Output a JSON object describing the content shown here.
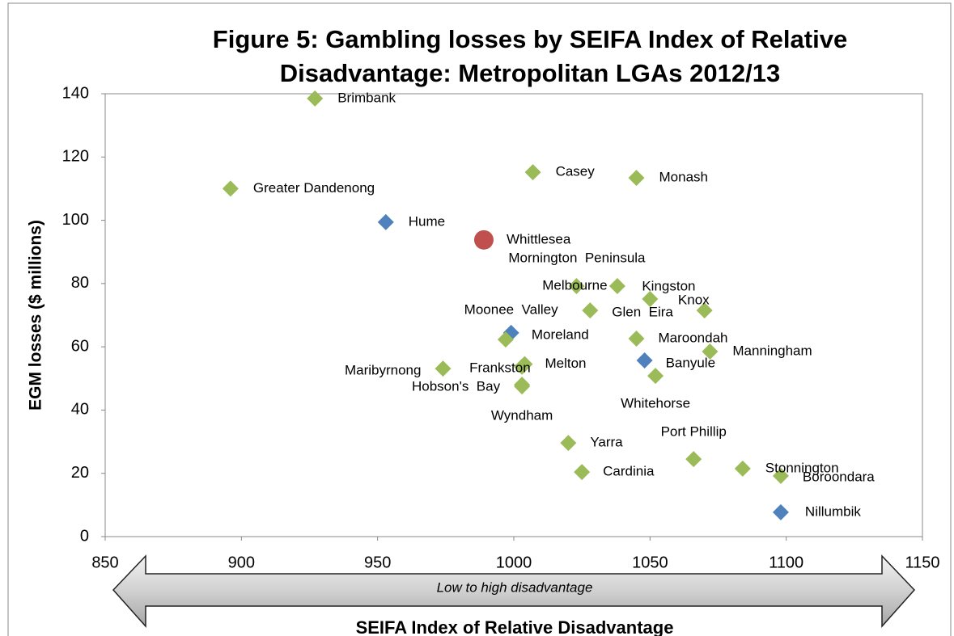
{
  "chart_data": {
    "type": "scatter",
    "title": "Figure 5: Gambling losses by SEIFA Index of Relative Disadvantage: Metropolitan LGAs 2012/13",
    "x_label": "SEIFA Index of Relative Disadvantage",
    "y_label": "EGM losses ($ millions)",
    "annotation": "Low to high disadvantage",
    "point_labels": [
      "Brimbank",
      "Greater Dandenong",
      "Hume",
      "Whittlesea",
      "Casey",
      "Monash",
      "Melbourne",
      "Mornington  Peninsula",
      "Kingston",
      "Knox",
      "Glen  Eira",
      "Moonee  Valley",
      "Moreland",
      "Maroondah",
      "Manningham",
      "Banyule",
      "Whitehorse",
      "Maribyrnong",
      "Frankston",
      "Melton",
      "Hobson's  Bay",
      "Wyndham",
      "Yarra",
      "Cardinia",
      "Port Phillip",
      "Stonnington",
      "Boroondara",
      "Nillumbik"
    ],
    "x": [
      927,
      896,
      953,
      989,
      1007,
      1045,
      1023,
      1038,
      1050,
      1070,
      1028,
      999,
      997,
      1045,
      1072,
      1048,
      1052,
      974,
      1003,
      1004,
      1003,
      1003,
      1020,
      1025,
      1066,
      1084,
      1098,
      1098
    ],
    "values": [
      138.5,
      110,
      99.4,
      93.8,
      115.2,
      113.4,
      79.2,
      79.2,
      75.1,
      71.5,
      71.5,
      64.4,
      62.3,
      62.6,
      58.5,
      55.7,
      50.8,
      53.1,
      53.7,
      54.5,
      48,
      47.5,
      29.6,
      20.4,
      24.5,
      21.5,
      19.2,
      7.7
    ],
    "colors": [
      "#9bbb59",
      "#9bbb59",
      "#4f81bd",
      "#c0504d",
      "#9bbb59",
      "#9bbb59",
      "#9bbb59",
      "#9bbb59",
      "#9bbb59",
      "#9bbb59",
      "#9bbb59",
      "#4f81bd",
      "#9bbb59",
      "#9bbb59",
      "#9bbb59",
      "#4f81bd",
      "#9bbb59",
      "#9bbb59",
      "#9bbb59",
      "#9bbb59",
      "#9bbb59",
      "#9bbb59",
      "#9bbb59",
      "#9bbb59",
      "#9bbb59",
      "#9bbb59",
      "#9bbb59",
      "#4f81bd"
    ],
    "markers": [
      "diamond",
      "diamond",
      "diamond",
      "circle",
      "diamond",
      "diamond",
      "diamond",
      "diamond",
      "diamond",
      "diamond",
      "diamond",
      "diamond",
      "diamond",
      "diamond",
      "diamond",
      "diamond",
      "diamond",
      "diamond",
      "diamond",
      "diamond",
      "diamond",
      "diamond",
      "diamond",
      "diamond",
      "diamond",
      "diamond",
      "diamond",
      "diamond"
    ],
    "xlim": [
      850,
      1150
    ],
    "xticks": [
      850,
      900,
      950,
      1000,
      1050,
      1100,
      1150
    ],
    "ylim": [
      0,
      140
    ],
    "yticks": [
      0,
      20,
      40,
      60,
      80,
      100,
      120,
      140
    ],
    "grid": false
  }
}
